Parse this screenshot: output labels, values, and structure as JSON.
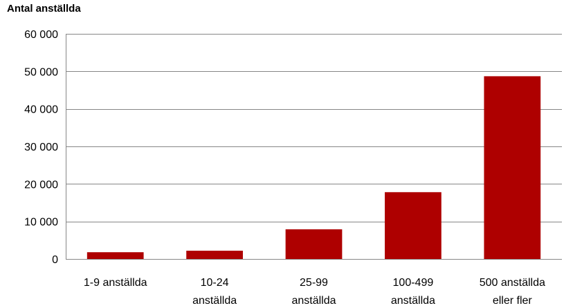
{
  "chart_data": {
    "type": "bar",
    "title": "Antal anställda",
    "xlabel": "",
    "ylabel": "",
    "categories": [
      [
        "1-9 anställda"
      ],
      [
        "10-24",
        "anställda"
      ],
      [
        "25-99",
        "anställda"
      ],
      [
        "100-499",
        "anställda"
      ],
      [
        "500 anställda",
        "eller fler"
      ]
    ],
    "values": [
      1800,
      2200,
      7900,
      17800,
      48700
    ],
    "ylim": [
      0,
      60000
    ],
    "yticks": [
      0,
      10000,
      20000,
      30000,
      40000,
      50000,
      60000
    ],
    "ytick_labels": [
      "0",
      "10 000",
      "20 000",
      "30 000",
      "40 000",
      "50 000",
      "60 000"
    ],
    "grid": true,
    "bar_color": "#AE0000",
    "grid_color": "#868686"
  }
}
